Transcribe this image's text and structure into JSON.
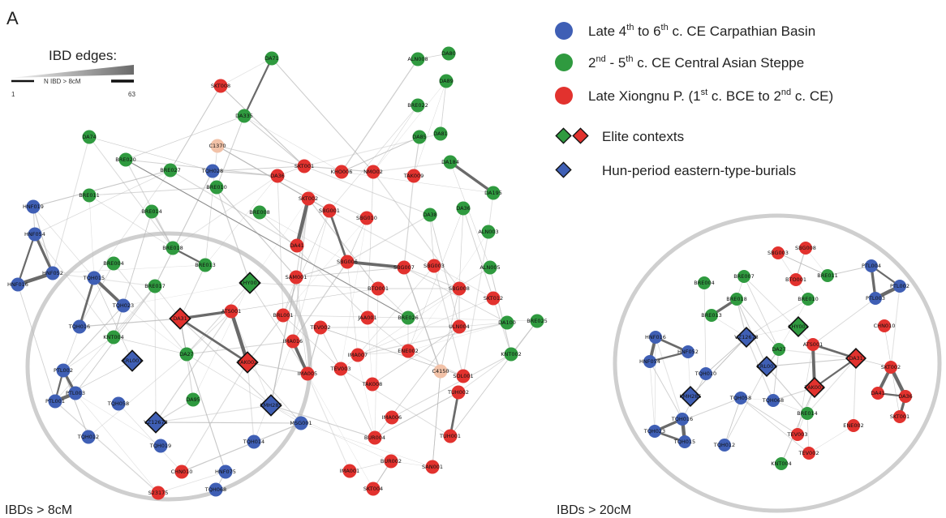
{
  "figure": {
    "panel_letter": "A",
    "caption_left": "IBDs > 8cM",
    "caption_right": "IBDs > 20cM"
  },
  "colors": {
    "blue": "#3f5fb5",
    "green": "#2f9a3f",
    "red": "#e2322e",
    "peach": "#f2c2a8",
    "edge": "#b8b8b8",
    "ring": "#cfcfcf"
  },
  "ibd_legend": {
    "title": "IBD edges:",
    "sub": "N IBD > 8cM",
    "min": "1",
    "max": "63"
  },
  "legend": {
    "items": [
      {
        "color": "blue",
        "text": "Late 4th to 6th c. CE Carpathian Basin"
      },
      {
        "color": "green",
        "text": "2nd - 5th c. CE Central Asian Steppe"
      },
      {
        "color": "red",
        "text": "Late Xiongnu P. (1st c. BCE to 2nd c. CE)"
      }
    ],
    "elite": "Elite contexts",
    "hun": "Hun-period eastern-type-burials"
  },
  "networks": {
    "left": {
      "nodes": [
        {
          "id": "SKT008",
          "c": "red"
        },
        {
          "id": "DA71",
          "c": "green"
        },
        {
          "id": "DA335",
          "c": "green"
        },
        {
          "id": "ALN008",
          "c": "green"
        },
        {
          "id": "DA80",
          "c": "green"
        },
        {
          "id": "BRE022",
          "c": "green"
        },
        {
          "id": "DA89",
          "c": "green"
        },
        {
          "id": "DA85",
          "c": "green"
        },
        {
          "id": "DA81",
          "c": "green"
        },
        {
          "id": "DA74",
          "c": "green"
        },
        {
          "id": "C1370",
          "c": "peach"
        },
        {
          "id": "BRE020",
          "c": "green"
        },
        {
          "id": "BRE027",
          "c": "green"
        },
        {
          "id": "TQH028",
          "c": "blue"
        },
        {
          "id": "BRE010",
          "c": "green"
        },
        {
          "id": "DA36",
          "c": "red"
        },
        {
          "id": "SKT001",
          "c": "red"
        },
        {
          "id": "KHO006",
          "c": "red"
        },
        {
          "id": "NMO02",
          "c": "red"
        },
        {
          "id": "TAK009",
          "c": "red"
        },
        {
          "id": "DA184",
          "c": "green"
        },
        {
          "id": "DA195",
          "c": "green"
        },
        {
          "id": "HNF019",
          "c": "blue"
        },
        {
          "id": "BRE011",
          "c": "green"
        },
        {
          "id": "BRE014",
          "c": "green"
        },
        {
          "id": "BRE008",
          "c": "green"
        },
        {
          "id": "SKT002",
          "c": "red"
        },
        {
          "id": "SBG001",
          "c": "red"
        },
        {
          "id": "SBG010",
          "c": "red"
        },
        {
          "id": "DA38",
          "c": "green"
        },
        {
          "id": "DA36b",
          "c": "green"
        },
        {
          "id": "HNF054",
          "c": "blue"
        },
        {
          "id": "ALN003",
          "c": "green"
        },
        {
          "id": "BRE018",
          "c": "green"
        },
        {
          "id": "BRE004",
          "c": "green"
        },
        {
          "id": "BRE013",
          "c": "green"
        },
        {
          "id": "DA41",
          "c": "red"
        },
        {
          "id": "SBG006",
          "c": "red"
        },
        {
          "id": "SBG007",
          "c": "red"
        },
        {
          "id": "SBG003",
          "c": "red"
        },
        {
          "id": "ALN005",
          "c": "green"
        },
        {
          "id": "HNF016",
          "c": "blue"
        },
        {
          "id": "HNF052",
          "c": "blue"
        },
        {
          "id": "TQH015",
          "c": "blue"
        },
        {
          "id": "BRE017",
          "c": "green"
        },
        {
          "id": "KHY001",
          "c": "green",
          "d": 1
        },
        {
          "id": "SAM001",
          "c": "red"
        },
        {
          "id": "BTO001",
          "c": "red"
        },
        {
          "id": "SBG008",
          "c": "red"
        },
        {
          "id": "SKT012",
          "c": "red"
        },
        {
          "id": "TQH023",
          "c": "blue"
        },
        {
          "id": "DA31",
          "c": "red",
          "d": 1
        },
        {
          "id": "ATS001",
          "c": "red"
        },
        {
          "id": "BRL001",
          "c": "red"
        },
        {
          "id": "JAA001",
          "c": "red"
        },
        {
          "id": "BRE026",
          "c": "green"
        },
        {
          "id": "TQH016",
          "c": "blue"
        },
        {
          "id": "KNT004",
          "c": "green"
        },
        {
          "id": "TEV002",
          "c": "red"
        },
        {
          "id": "ULN004",
          "c": "red"
        },
        {
          "id": "DA100",
          "c": "green"
        },
        {
          "id": "BRE025",
          "c": "green"
        },
        {
          "id": "TAK002",
          "c": "red",
          "d": 1
        },
        {
          "id": "IMA016",
          "c": "red"
        },
        {
          "id": "KRL001",
          "c": "blue",
          "d": 1
        },
        {
          "id": "DA27",
          "c": "green"
        },
        {
          "id": "IMA007",
          "c": "red"
        },
        {
          "id": "ENE002",
          "c": "red"
        },
        {
          "id": "KNT002",
          "c": "green"
        },
        {
          "id": "PTL002",
          "c": "blue"
        },
        {
          "id": "PTL003",
          "c": "blue"
        },
        {
          "id": "PTL001",
          "c": "blue"
        },
        {
          "id": "TEV003",
          "c": "red"
        },
        {
          "id": "IMA005",
          "c": "red"
        },
        {
          "id": "SOL001",
          "c": "red"
        },
        {
          "id": "C4150",
          "c": "peach"
        },
        {
          "id": "TAK008",
          "c": "red"
        },
        {
          "id": "TQH058",
          "c": "blue"
        },
        {
          "id": "DA95",
          "c": "green"
        },
        {
          "id": "KMH285",
          "c": "blue",
          "d": 1
        },
        {
          "id": "IMA006",
          "c": "red"
        },
        {
          "id": "TUH002",
          "c": "red"
        },
        {
          "id": "VZ12673",
          "c": "blue",
          "d": 1
        },
        {
          "id": "BUR004",
          "c": "red"
        },
        {
          "id": "TQH012",
          "c": "blue"
        },
        {
          "id": "MSG001",
          "c": "blue"
        },
        {
          "id": "TQH019",
          "c": "blue"
        },
        {
          "id": "TQH014",
          "c": "blue"
        },
        {
          "id": "BUR002",
          "c": "red"
        },
        {
          "id": "TUH001",
          "c": "red"
        },
        {
          "id": "IMA001",
          "c": "red"
        },
        {
          "id": "SAN001",
          "c": "red"
        },
        {
          "id": "CHN010",
          "c": "red"
        },
        {
          "id": "HNF075",
          "c": "blue"
        },
        {
          "id": "S23175",
          "c": "red"
        },
        {
          "id": "TQH068",
          "c": "blue"
        },
        {
          "id": "SKT004",
          "c": "red"
        }
      ],
      "strong_edges": [
        [
          "DA71",
          "DA335"
        ],
        [
          "DA184",
          "DA195"
        ],
        [
          "SKT002",
          "DA41"
        ],
        [
          "SBG001",
          "SBG006"
        ],
        [
          "SBG006",
          "SBG007"
        ],
        [
          "HNF054",
          "HNF016"
        ],
        [
          "HNF054",
          "HNF052"
        ],
        [
          "HNF016",
          "HNF052"
        ],
        [
          "TQH015",
          "TQH016"
        ],
        [
          "TQH015",
          "TQH023"
        ],
        [
          "PTL002",
          "PTL001"
        ],
        [
          "PTL002",
          "PTL003"
        ],
        [
          "PTL003",
          "PTL001"
        ],
        [
          "TUH002",
          "TUH001"
        ],
        [
          "IMA016",
          "IMA005"
        ],
        [
          "BRE018",
          "BRE013"
        ],
        [
          "DA31",
          "ATS001"
        ],
        [
          "ATS001",
          "TAK002"
        ],
        [
          "DA31",
          "TAK002"
        ]
      ]
    },
    "right": {
      "nodes": [
        {
          "id": "SBG003",
          "c": "red"
        },
        {
          "id": "SBG008",
          "c": "red"
        },
        {
          "id": "BRE007",
          "c": "green"
        },
        {
          "id": "BRE011",
          "c": "green"
        },
        {
          "id": "BTO001",
          "c": "red"
        },
        {
          "id": "PTL004",
          "c": "blue"
        },
        {
          "id": "BRE004",
          "c": "green"
        },
        {
          "id": "BRE018",
          "c": "green"
        },
        {
          "id": "BRE010",
          "c": "green"
        },
        {
          "id": "PTL002",
          "c": "blue"
        },
        {
          "id": "PTL003",
          "c": "blue"
        },
        {
          "id": "BRE013",
          "c": "green"
        },
        {
          "id": "KHY001",
          "c": "green",
          "d": 1
        },
        {
          "id": "CHN010",
          "c": "red"
        },
        {
          "id": "HNF016",
          "c": "blue"
        },
        {
          "id": "VZ12673",
          "c": "blue",
          "d": 1
        },
        {
          "id": "HNF052",
          "c": "blue"
        },
        {
          "id": "DA27",
          "c": "green"
        },
        {
          "id": "ATS001",
          "c": "red"
        },
        {
          "id": "HNF054",
          "c": "blue"
        },
        {
          "id": "DA31",
          "c": "red",
          "d": 1
        },
        {
          "id": "KRL001",
          "c": "blue",
          "d": 1
        },
        {
          "id": "TQH010",
          "c": "blue"
        },
        {
          "id": "SKT002",
          "c": "red"
        },
        {
          "id": "TAK002",
          "c": "red",
          "d": 1
        },
        {
          "id": "TQH058",
          "c": "blue"
        },
        {
          "id": "TQH068",
          "c": "blue"
        },
        {
          "id": "DA41",
          "c": "red"
        },
        {
          "id": "DA36",
          "c": "red"
        },
        {
          "id": "KMH285",
          "c": "blue",
          "d": 1
        },
        {
          "id": "BRE014",
          "c": "green"
        },
        {
          "id": "SKT001",
          "c": "red"
        },
        {
          "id": "TQH016",
          "c": "blue"
        },
        {
          "id": "ENE002",
          "c": "red"
        },
        {
          "id": "TQH023",
          "c": "blue"
        },
        {
          "id": "TEV003",
          "c": "red"
        },
        {
          "id": "TQH015",
          "c": "blue"
        },
        {
          "id": "TQH012",
          "c": "blue"
        },
        {
          "id": "TEV002",
          "c": "red"
        },
        {
          "id": "KNT004",
          "c": "green"
        }
      ],
      "strong_edges": [
        [
          "PTL004",
          "PTL002"
        ],
        [
          "PTL004",
          "PTL003"
        ],
        [
          "PTL002",
          "PTL003"
        ],
        [
          "HNF016",
          "HNF052"
        ],
        [
          "HNF016",
          "HNF054"
        ],
        [
          "HNF052",
          "HNF054"
        ],
        [
          "TQH016",
          "TQH023"
        ],
        [
          "TQH016",
          "TQH015"
        ],
        [
          "TQH023",
          "TQH015"
        ],
        [
          "SKT002",
          "DA41"
        ],
        [
          "DA41",
          "DA36"
        ],
        [
          "DA36",
          "SKT001"
        ],
        [
          "SKT002",
          "DA36"
        ],
        [
          "DA31",
          "ATS001"
        ],
        [
          "ATS001",
          "TAK002"
        ],
        [
          "DA31",
          "TAK002"
        ],
        [
          "BRE018",
          "BRE013"
        ]
      ]
    }
  }
}
